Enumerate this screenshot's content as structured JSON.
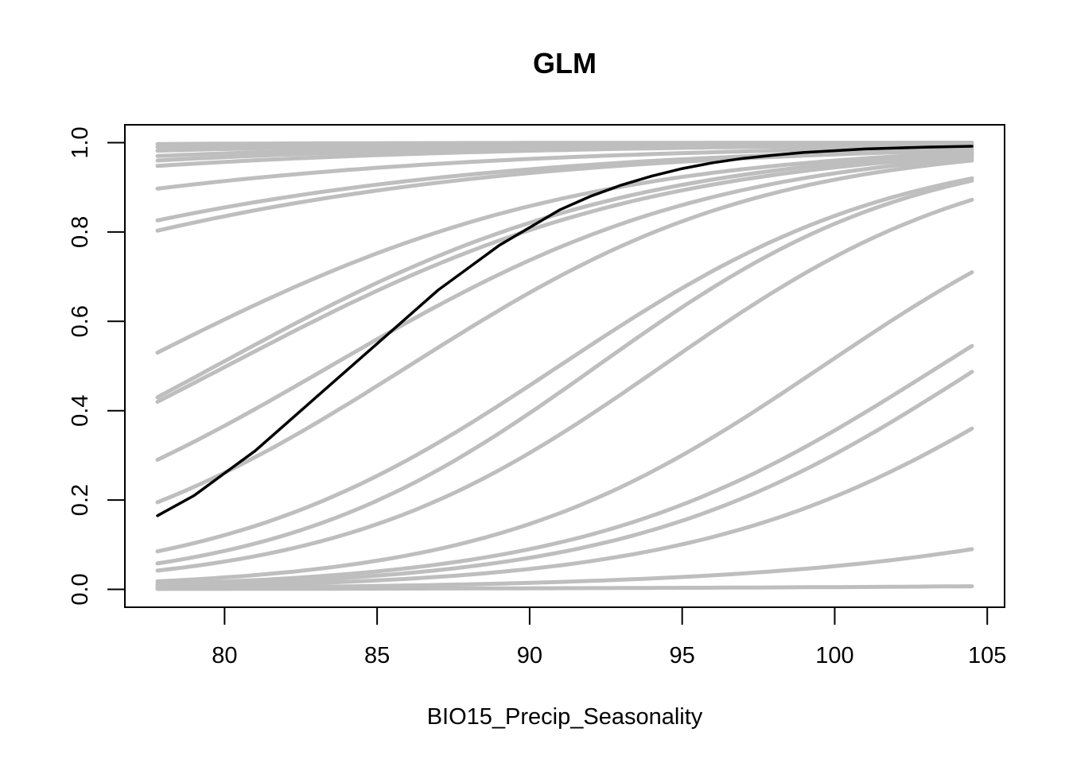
{
  "chart_data": {
    "type": "line",
    "title": "GLM",
    "xlabel": "BIO15_Precip_Seasonality",
    "ylabel": "",
    "xlim": [
      77.8,
      104.5
    ],
    "ylim": [
      0,
      1
    ],
    "x_ticks": [
      "80",
      "85",
      "90",
      "95",
      "100",
      "105"
    ],
    "y_ticks": [
      "0.0",
      "0.2",
      "0.4",
      "0.6",
      "0.8",
      "1.0"
    ],
    "grid": false,
    "legend": "none",
    "colors": {
      "background": "#bebebe",
      "highlight": "#000000"
    },
    "highlight_series": {
      "x": [
        77.8,
        79,
        80,
        81,
        82,
        83,
        84,
        85,
        86,
        87,
        88,
        89,
        90,
        91,
        92,
        93,
        94,
        95,
        96,
        97,
        98,
        99,
        100,
        101,
        102,
        103,
        104.5
      ],
      "y": [
        0.165,
        0.21,
        0.26,
        0.31,
        0.37,
        0.43,
        0.49,
        0.55,
        0.61,
        0.67,
        0.72,
        0.77,
        0.81,
        0.85,
        0.88,
        0.905,
        0.925,
        0.942,
        0.955,
        0.965,
        0.972,
        0.978,
        0.982,
        0.986,
        0.988,
        0.99,
        0.992
      ]
    },
    "series": [
      {
        "x": [
          77.8,
          104.5
        ],
        "y": [
          0.997,
          0.9999
        ]
      },
      {
        "x": [
          77.8,
          104.5
        ],
        "y": [
          0.99,
          0.9995
        ]
      },
      {
        "x": [
          77.8,
          104.5
        ],
        "y": [
          0.982,
          0.999
        ]
      },
      {
        "x": [
          77.8,
          104.5
        ],
        "y": [
          0.97,
          0.998
        ]
      },
      {
        "x": [
          77.8,
          104.5
        ],
        "y": [
          0.96,
          0.997
        ]
      },
      {
        "x": [
          77.8,
          104.5
        ],
        "y": [
          0.948,
          0.995
        ]
      },
      {
        "x": [
          77.8,
          104.5
        ],
        "y": [
          0.897,
          0.99
        ]
      },
      {
        "x": [
          77.8,
          104.5
        ],
        "y": [
          0.826,
          0.985
        ]
      },
      {
        "x": [
          77.8,
          104.5
        ],
        "y": [
          0.803,
          0.983
        ]
      },
      {
        "x": [
          77.8,
          104.5
        ],
        "y": [
          0.53,
          0.978
        ]
      },
      {
        "x": [
          77.8,
          104.5
        ],
        "y": [
          0.43,
          0.975
        ]
      },
      {
        "x": [
          77.8,
          104.5
        ],
        "y": [
          0.42,
          0.97
        ]
      },
      {
        "x": [
          77.8,
          104.5
        ],
        "y": [
          0.29,
          0.965
        ]
      },
      {
        "x": [
          77.8,
          104.5
        ],
        "y": [
          0.195,
          0.96
        ]
      },
      {
        "x": [
          77.8,
          104.5
        ],
        "y": [
          0.085,
          0.92
        ]
      },
      {
        "x": [
          77.8,
          104.5
        ],
        "y": [
          0.058,
          0.915
        ]
      },
      {
        "x": [
          77.8,
          104.5
        ],
        "y": [
          0.042,
          0.872
        ]
      },
      {
        "x": [
          77.8,
          104.5
        ],
        "y": [
          0.018,
          0.71
        ]
      },
      {
        "x": [
          77.8,
          104.5
        ],
        "y": [
          0.012,
          0.545
        ]
      },
      {
        "x": [
          77.8,
          104.5
        ],
        "y": [
          0.009,
          0.487
        ]
      },
      {
        "x": [
          77.8,
          104.5
        ],
        "y": [
          0.006,
          0.36
        ]
      },
      {
        "x": [
          77.8,
          104.5
        ],
        "y": [
          0.003,
          0.09
        ]
      },
      {
        "x": [
          77.8,
          104.5
        ],
        "y": [
          0.001,
          0.007
        ]
      }
    ]
  }
}
